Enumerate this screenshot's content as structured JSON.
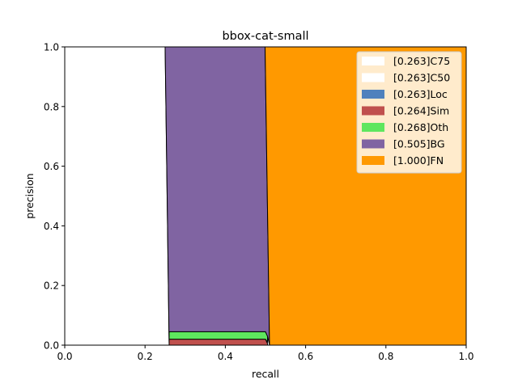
{
  "chart_data": {
    "type": "area",
    "title": "bbox-cat-small",
    "xlabel": "recall",
    "ylabel": "precision",
    "xlim": [
      0,
      1
    ],
    "ylim": [
      0,
      1
    ],
    "xticks": [
      "0.0",
      "0.2",
      "0.4",
      "0.6",
      "0.8",
      "1.0"
    ],
    "yticks": [
      "0.0",
      "0.2",
      "0.4",
      "0.6",
      "0.8",
      "1.0"
    ],
    "grid": false,
    "legend_position": "top-right",
    "series": [
      {
        "name": "[0.263]C75",
        "color": "#ffffff",
        "points": [
          [
            0,
            1
          ],
          [
            0.25,
            1
          ],
          [
            0.26,
            0
          ],
          [
            0,
            0
          ]
        ]
      },
      {
        "name": "[0.263]C50",
        "color": "#ffffff",
        "points": [
          [
            0,
            1
          ],
          [
            0.25,
            1
          ],
          [
            0.26,
            0
          ],
          [
            0,
            0
          ]
        ]
      },
      {
        "name": "[0.263]Loc",
        "color": "#4f81bd",
        "points": [
          [
            0.26,
            0.01
          ],
          [
            0.5,
            0.01
          ],
          [
            0.505,
            0
          ],
          [
            0.26,
            0
          ]
        ]
      },
      {
        "name": "[0.264]Sim",
        "color": "#c0504d",
        "points": [
          [
            0.26,
            0.02
          ],
          [
            0.5,
            0.02
          ],
          [
            0.505,
            0.005
          ],
          [
            0.505,
            0
          ],
          [
            0.26,
            0
          ]
        ]
      },
      {
        "name": "[0.268]Oth",
        "color": "#5ee65e",
        "points": [
          [
            0.26,
            0.045
          ],
          [
            0.5,
            0.045
          ],
          [
            0.505,
            0.03
          ],
          [
            0.505,
            0.01
          ],
          [
            0.5,
            0.02
          ],
          [
            0.26,
            0.02
          ]
        ]
      },
      {
        "name": "[0.505]BG",
        "color": "#8064a2",
        "points": [
          [
            0.25,
            1
          ],
          [
            0.499,
            1
          ],
          [
            0.51,
            0
          ],
          [
            0.505,
            0.03
          ],
          [
            0.5,
            0.045
          ],
          [
            0.26,
            0.045
          ],
          [
            0.26,
            0
          ]
        ]
      },
      {
        "name": "[1.000]FN",
        "color": "#ff9900",
        "points": [
          [
            0.499,
            1
          ],
          [
            1,
            1
          ],
          [
            1,
            0
          ],
          [
            0.51,
            0
          ]
        ]
      }
    ]
  }
}
